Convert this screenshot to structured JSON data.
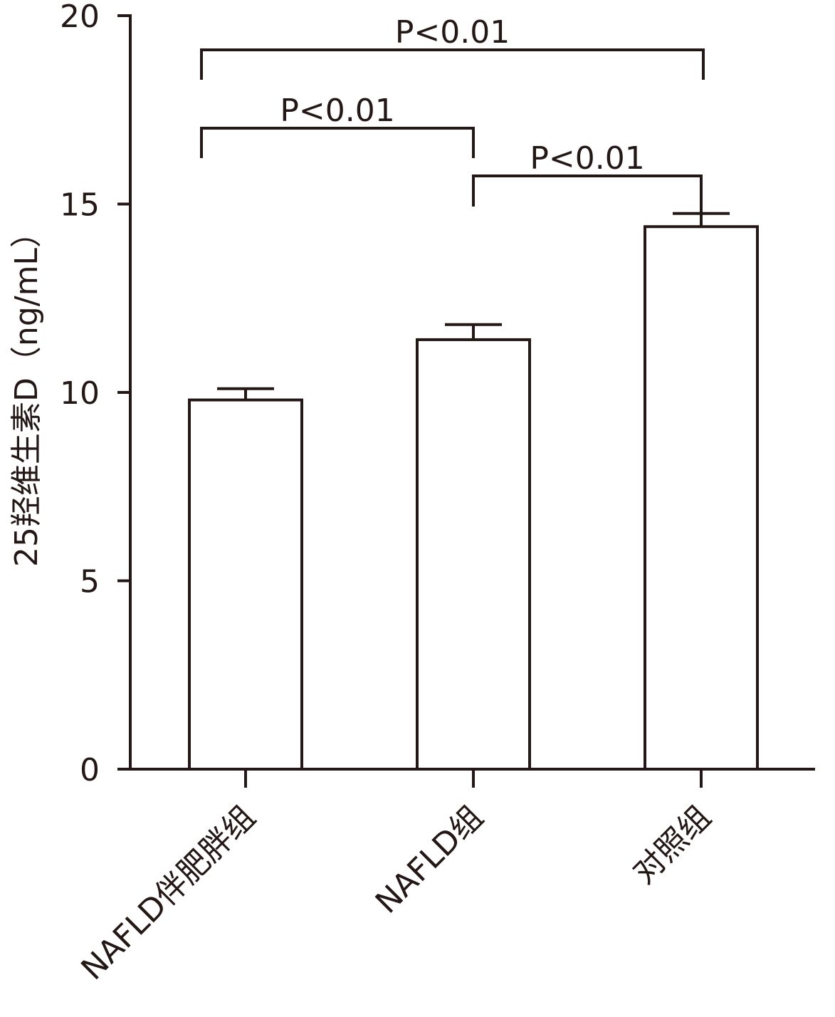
{
  "chart_data": {
    "type": "bar",
    "y_label": "25羟维生素D（ng/mL）",
    "categories": [
      "NAFLD伴肥胖组",
      "NAFLD组",
      "对照组"
    ],
    "values": [
      9.8,
      11.4,
      14.4
    ],
    "errors": [
      0.3,
      0.4,
      0.35
    ],
    "color": "#ffffff",
    "ylim": [
      0,
      20
    ],
    "yticks": [
      0,
      5,
      10,
      15,
      20
    ],
    "annotations": [
      {
        "from": 0,
        "to": 2,
        "text": "P<0.01"
      },
      {
        "from": 0,
        "to": 1,
        "text": "P<0.01"
      },
      {
        "from": 1,
        "to": 2,
        "text": "P<0.01"
      }
    ]
  }
}
